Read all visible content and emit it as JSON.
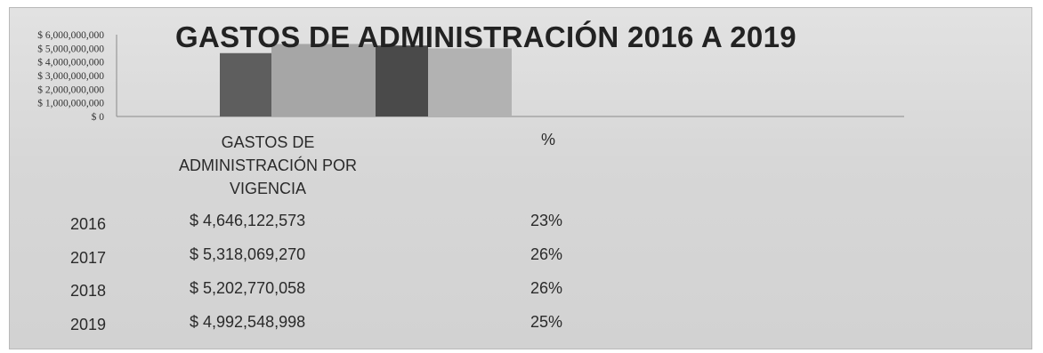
{
  "chart_data": {
    "type": "bar",
    "title": "GASTOS DE ADMINISTRACIÓN 2016 A 2019",
    "ylim": [
      0,
      6000000000
    ],
    "yticks": [
      0,
      1000000000,
      2000000000,
      3000000000,
      4000000000,
      5000000000,
      6000000000
    ],
    "ytick_labels": [
      "$ 0",
      "$ 1,000,000,000",
      "$ 2,000,000,000",
      "$ 3,000,000,000",
      "$ 4,000,000,000",
      "$ 5,000,000,000",
      "$ 6,000,000,000"
    ],
    "categories": [
      "2016",
      "2017",
      "2018",
      "2019"
    ],
    "series": [
      {
        "name": "GASTOS DE ADMINISTRACIÓN POR VIGENCIA",
        "values": [
          4646122573,
          5318069270,
          5202770058,
          4992548998
        ],
        "color": "#5e5e5e"
      },
      {
        "name": "%",
        "values": [
          23,
          26,
          26,
          25
        ]
      }
    ],
    "colors": [
      "#5e5e5e",
      "#a6a6a6",
      "#4a4a4a",
      "#b2b2b2"
    ],
    "grid": false,
    "legend": "none"
  },
  "table": {
    "header_amount": "GASTOS DE ADMINISTRACIÓN POR VIGENCIA",
    "header_pct": "%",
    "rows": [
      {
        "year": "2016",
        "amount": "$ 4,646,122,573",
        "pct": "23%"
      },
      {
        "year": "2017",
        "amount": "$ 5,318,069,270",
        "pct": "26%"
      },
      {
        "year": "2018",
        "amount": "$ 5,202,770,058",
        "pct": "26%"
      },
      {
        "year": "2019",
        "amount": "$ 4,992,548,998",
        "pct": "25%"
      }
    ]
  }
}
